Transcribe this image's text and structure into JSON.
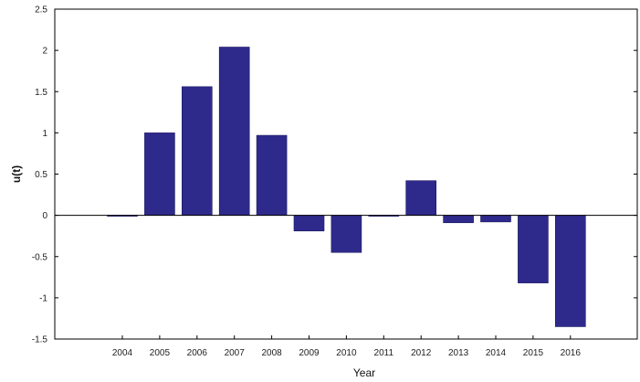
{
  "chart_data": {
    "type": "bar",
    "title": "",
    "xlabel": "Year",
    "ylabel": "u(t)",
    "categories": [
      "2004",
      "2005",
      "2006",
      "2007",
      "2008",
      "2009",
      "2010",
      "2011",
      "2012",
      "2013",
      "2014",
      "2015",
      "2016"
    ],
    "values": [
      0.0,
      1.0,
      1.56,
      2.04,
      0.97,
      -0.19,
      -0.45,
      0.0,
      0.42,
      -0.09,
      -0.08,
      -0.82,
      -1.35
    ],
    "ylim": [
      -1.5,
      2.5
    ],
    "yticks": [
      -1.5,
      -1,
      -0.5,
      0,
      0.5,
      1,
      1.5,
      2,
      2.5
    ],
    "ytick_labels": [
      "-1.5",
      "-1",
      "-0.5",
      "0",
      "0.5",
      "1",
      "1.5",
      "2",
      "2.5"
    ],
    "grid": false,
    "legend": "none",
    "colors": {
      "bar": "#2e2a8c",
      "axis": "#000000"
    }
  }
}
